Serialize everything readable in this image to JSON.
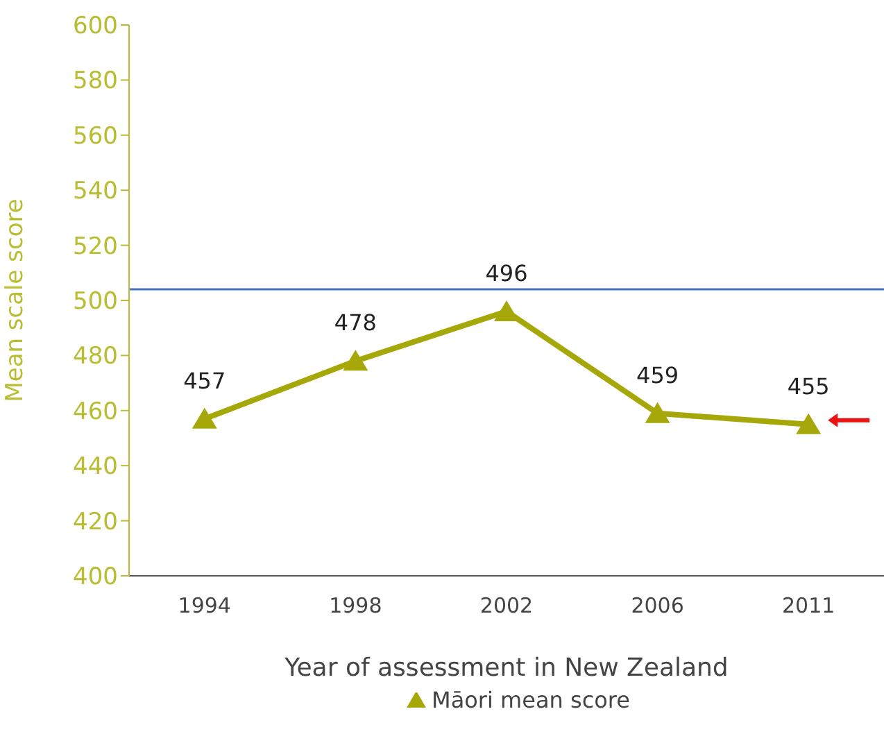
{
  "chart_data": {
    "type": "line",
    "xlabel": "Year of assessment in New Zealand",
    "ylabel": "Mean scale score",
    "categories": [
      "1994",
      "1998",
      "2002",
      "2006",
      "2011"
    ],
    "series": [
      {
        "name": "Māori mean score",
        "color": "#a6a80a",
        "values": [
          457,
          478,
          496,
          459,
          455
        ]
      }
    ],
    "ylim": [
      400,
      600
    ],
    "yticks": [
      400,
      420,
      440,
      460,
      480,
      500,
      520,
      540,
      560,
      580,
      600
    ],
    "ref_lines": [
      {
        "axis": "y",
        "value": 504,
        "color": "#4472c4"
      }
    ],
    "marker": "triangle",
    "data_labels": true,
    "grid": false,
    "legend": "bottom"
  }
}
